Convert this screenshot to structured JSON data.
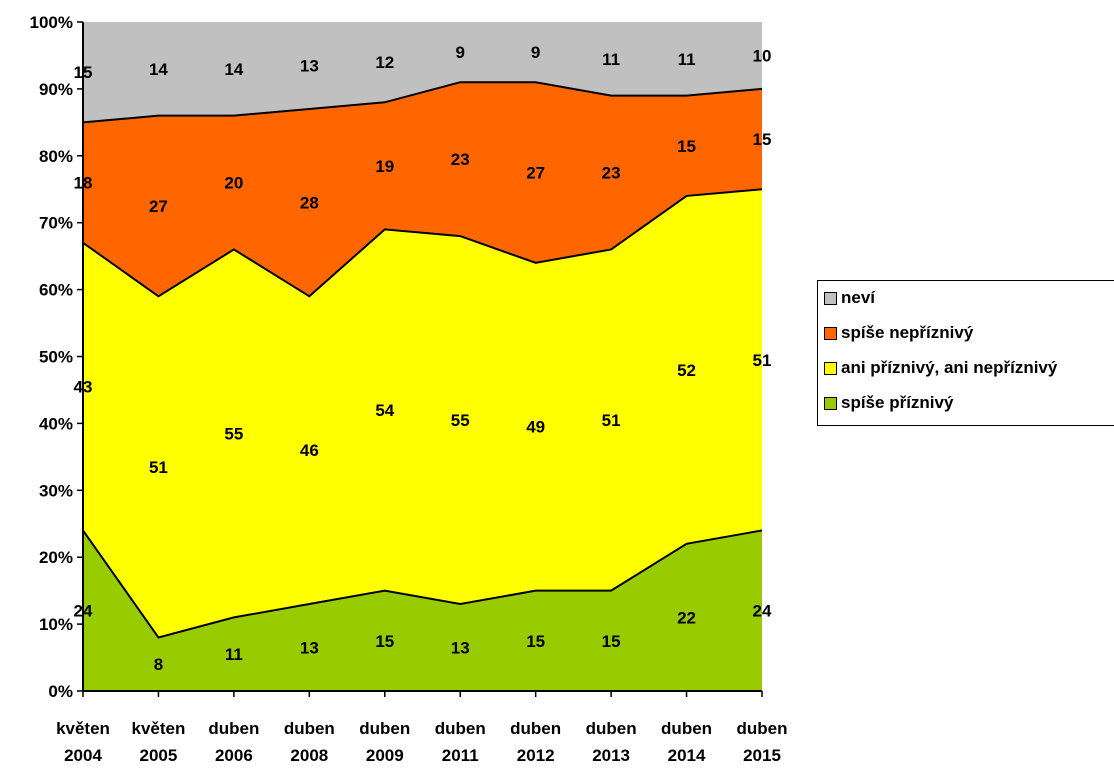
{
  "chart_data": {
    "type": "area",
    "stacked": true,
    "percent": true,
    "categories": [
      [
        "květen",
        "2004"
      ],
      [
        "květen",
        "2005"
      ],
      [
        "duben",
        "2006"
      ],
      [
        "duben",
        "2008"
      ],
      [
        "duben",
        "2009"
      ],
      [
        "duben",
        "2011"
      ],
      [
        "duben",
        "2012"
      ],
      [
        "duben",
        "2013"
      ],
      [
        "duben",
        "2014"
      ],
      [
        "duben",
        "2015"
      ]
    ],
    "ylim": [
      0,
      100
    ],
    "yticks": [
      "0%",
      "10%",
      "20%",
      "30%",
      "40%",
      "50%",
      "60%",
      "70%",
      "80%",
      "90%",
      "100%"
    ],
    "grid": false,
    "legend_position": "right",
    "series": [
      {
        "name": "spíše příznivý",
        "color": "#99cc00",
        "values": [
          24,
          8,
          11,
          13,
          15,
          13,
          15,
          15,
          22,
          24
        ]
      },
      {
        "name": "ani příznivý, ani nepříznivý",
        "color": "#ffff00",
        "values": [
          43,
          51,
          55,
          46,
          54,
          55,
          49,
          51,
          52,
          51
        ]
      },
      {
        "name": "spíše nepříznivý",
        "color": "#ff6600",
        "values": [
          18,
          27,
          20,
          28,
          19,
          23,
          27,
          23,
          15,
          15
        ]
      },
      {
        "name": "neví",
        "color": "#c0c0c0",
        "values": [
          15,
          14,
          14,
          13,
          12,
          9,
          9,
          11,
          11,
          10
        ]
      }
    ]
  }
}
